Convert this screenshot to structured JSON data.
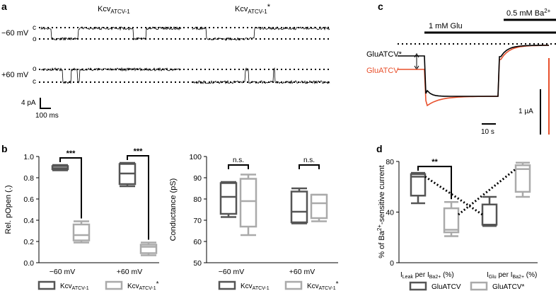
{
  "panel_a": {
    "letter": "a",
    "col1_label": "Kcv",
    "col1_sub": "ATCV-1",
    "col2_label": "Kcv",
    "col2_sub": "ATCV-1",
    "col2_star": "*",
    "row1_voltage": "−60 mV",
    "row2_voltage": "+60 mV",
    "row1_upper": "c",
    "row1_lower": "o",
    "row2_upper": "o",
    "row2_lower": "c",
    "scale_current": "4 pA",
    "scale_time": "100 ms"
  },
  "panel_b": {
    "letter": "b",
    "legend": [
      {
        "text": "Kcv",
        "sub": "ATCV-1",
        "star": "",
        "color": "#555555"
      },
      {
        "text": "Kcv",
        "sub": "ATCV-1",
        "star": "*",
        "color": "#aaaaaa"
      }
    ]
  },
  "panel_c": {
    "letter": "c",
    "glu_label": "1 mM Glu",
    "ba_label": "0.5 mM Ba",
    "ba_sup": "2+",
    "trace_star_label": "GluATCV*",
    "trace_label": "GluATCV",
    "scale_time": "10 s",
    "scale_current": "1 µA",
    "colors": {
      "star": "#000000",
      "wt": "#e8502c"
    }
  },
  "panel_d": {
    "letter": "d",
    "legend": [
      {
        "text": "GluATCV",
        "color": "#555555"
      },
      {
        "text": "GluATCV*",
        "color": "#aaaaaa"
      }
    ]
  },
  "chart_data": [
    {
      "type": "box",
      "panel": "b-left",
      "ylabel": "Rel. pOpen (.)",
      "ylim": [
        0,
        1
      ],
      "yticks": [
        0,
        0.2,
        0.4,
        0.6,
        0.8,
        1.0
      ],
      "ytick_labels": [
        "0.0",
        "0.2",
        "0.4",
        "0.6",
        "0.8",
        "1.0"
      ],
      "categories": [
        "−60 mV",
        "+60 mV"
      ],
      "series": [
        {
          "name": "Kcv ATCV-1",
          "color": "#555555",
          "boxes": [
            {
              "min": 0.87,
              "q1": 0.88,
              "median": 0.89,
              "q3": 0.91,
              "max": 0.92
            },
            {
              "min": 0.72,
              "q1": 0.74,
              "median": 0.84,
              "q3": 0.93,
              "max": 0.94
            }
          ]
        },
        {
          "name": "Kcv ATCV-1*",
          "color": "#aaaaaa",
          "boxes": [
            {
              "min": 0.19,
              "q1": 0.21,
              "median": 0.26,
              "q3": 0.36,
              "max": 0.39
            },
            {
              "min": 0.07,
              "q1": 0.09,
              "median": 0.15,
              "q3": 0.17,
              "max": 0.19
            }
          ]
        }
      ],
      "significance": [
        "***",
        "***"
      ]
    },
    {
      "type": "box",
      "panel": "b-right",
      "ylabel": "Conductance (pS)",
      "ylim": [
        50,
        100
      ],
      "yticks": [
        50,
        60,
        70,
        80,
        90,
        100
      ],
      "ytick_labels": [
        "50",
        "60",
        "70",
        "80",
        "90",
        "100"
      ],
      "categories": [
        "−60 mV",
        "+60 mV"
      ],
      "series": [
        {
          "name": "Kcv ATCV-1",
          "color": "#555555",
          "boxes": [
            {
              "min": 71.5,
              "q1": 73,
              "median": 81,
              "q3": 87.5,
              "max": 88
            },
            {
              "min": 68.5,
              "q1": 69,
              "median": 74,
              "q3": 83.5,
              "max": 85
            }
          ]
        },
        {
          "name": "Kcv ATCV-1*",
          "color": "#aaaaaa",
          "boxes": [
            {
              "min": 63,
              "q1": 67,
              "median": 79,
              "q3": 89.5,
              "max": 91.5
            },
            {
              "min": 69.5,
              "q1": 71,
              "median": 78,
              "q3": 82,
              "max": 82
            }
          ]
        }
      ],
      "significance": [
        "n.s.",
        "n.s."
      ]
    },
    {
      "type": "box",
      "panel": "d",
      "ylabel": "% of Ba2+-sensitive current",
      "ylim": [
        0,
        80
      ],
      "yticks": [
        0,
        40,
        80
      ],
      "ytick_labels": [
        "0",
        "40",
        "80"
      ],
      "categories": [
        "I Leak per I Ba2+ (%)",
        "I Glu per I Ba2+ (%)"
      ],
      "series": [
        {
          "name": "GluATCV",
          "color": "#555555",
          "boxes": [
            {
              "min": 47,
              "q1": 53,
              "median": 68,
              "q3": 70,
              "max": 71
            },
            {
              "min": 29,
              "q1": 30,
              "median": 30,
              "q3": 46,
              "max": 52
            }
          ]
        },
        {
          "name": "GluATCV*",
          "color": "#aaaaaa",
          "boxes": [
            {
              "min": 21,
              "q1": 24,
              "median": 26,
              "q3": 43,
              "max": 48
            },
            {
              "min": 52,
              "q1": 56,
              "median": 74,
              "q3": 77,
              "max": 79
            }
          ]
        }
      ],
      "significance": [
        "**"
      ]
    }
  ]
}
